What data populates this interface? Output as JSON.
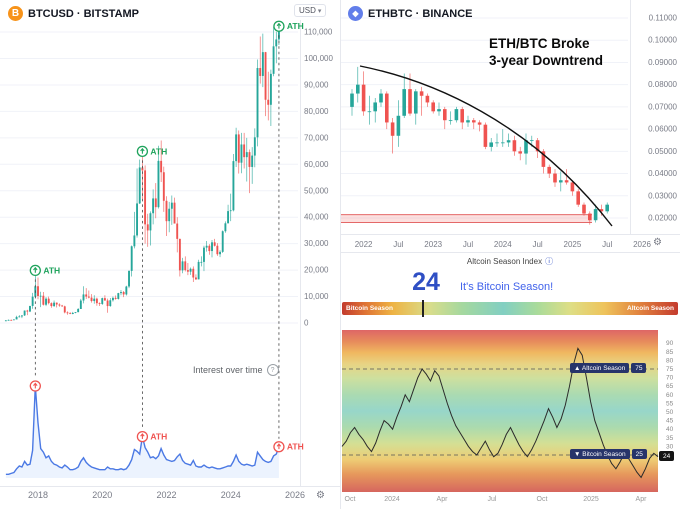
{
  "left_panel": {
    "symbol_title": "BTCUSD · BITSTAMP",
    "currency_label": "USD",
    "y_axis_labels": [
      "110,000",
      "100,000",
      "90,000",
      "80,000",
      "70,000",
      "60,000",
      "50,000",
      "40,000",
      "30,000",
      "20,000",
      "10,000",
      "0"
    ],
    "x_axis_labels": [
      "2018",
      "2020",
      "2022",
      "2024",
      "2026"
    ],
    "ath_label": "ATH",
    "interest_title": "Interest over time",
    "help_glyph": "?"
  },
  "right_top_panel": {
    "symbol_title": "ETHBTC · BINANCE",
    "annotation_line1": "ETH/BTC Broke",
    "annotation_line2": "3-year Downtrend",
    "y_axis_labels": [
      "0.11000",
      "0.10000",
      "0.09000",
      "0.08000",
      "0.07000",
      "0.06000",
      "0.05000",
      "0.04000",
      "0.03000",
      "0.02000"
    ],
    "x_axis_labels": [
      "2022",
      "Jul",
      "2023",
      "Jul",
      "2024",
      "Jul",
      "2025",
      "Jul",
      "2026"
    ]
  },
  "altcoin_panel": {
    "title": "Altcoin Season Index",
    "info_glyph": "ⓘ",
    "value": "24",
    "status": "It's Bitcoin Season!",
    "bar_left_label": "Bitcoin Season",
    "bar_right_label": "Altcoin Season",
    "marker_percent": 24,
    "altcoin_line_label": "▲ Altcoin Season",
    "altcoin_line_value": "75",
    "bitcoin_line_label": "▼ Bitcoin Season",
    "bitcoin_line_value": "25",
    "current_value": "24",
    "y_axis_labels": [
      "90",
      "85",
      "80",
      "75",
      "70",
      "65",
      "60",
      "55",
      "50",
      "45",
      "40",
      "35",
      "30"
    ],
    "x_axis_labels": [
      "Oct",
      "2024",
      "Apr",
      "Jul",
      "Oct",
      "2025",
      "Apr"
    ]
  },
  "icons": {
    "bitcoin_logo": "B",
    "ethereum_logo": "◆",
    "gear": "⚙",
    "usd_caret": "▾"
  },
  "colors": {
    "candle_up": "#26a69a",
    "candle_down": "#ef5350",
    "ath_green": "#1fa35c",
    "ath_red": "#ef5350",
    "trend_blue": "#4b79e4",
    "btc_orange": "#f7931a",
    "eth_blue": "#627eea",
    "season_blue": "#2f4fc4",
    "support_red": "#e05252",
    "axis_text": "#787b86",
    "grid": "#f0f2f8",
    "border": "#e6e8ee"
  },
  "chart_data": [
    {
      "type": "candlestick",
      "title": "BTCUSD · BITSTAMP",
      "unit": "USD (thousands)",
      "x_start": "2017-01",
      "interval": "monthly",
      "ylim": [
        0,
        113
      ],
      "ath_indices": [
        11,
        51,
        102
      ],
      "candles": [
        [
          0.96,
          1.14,
          0.74,
          0.97
        ],
        [
          0.97,
          1.3,
          0.92,
          1.18
        ],
        [
          1.18,
          1.29,
          0.89,
          1.08
        ],
        [
          1.08,
          1.36,
          1.07,
          1.35
        ],
        [
          1.35,
          2.76,
          1.34,
          2.29
        ],
        [
          2.29,
          2.98,
          2.11,
          2.48
        ],
        [
          2.48,
          2.93,
          1.83,
          2.87
        ],
        [
          2.87,
          4.76,
          2.66,
          4.7
        ],
        [
          4.7,
          4.98,
          2.97,
          4.34
        ],
        [
          4.34,
          6.47,
          4.11,
          6.45
        ],
        [
          6.45,
          11.4,
          5.4,
          9.95
        ],
        [
          9.95,
          19.9,
          9.4,
          13.9
        ],
        [
          13.9,
          17.2,
          9.0,
          10.2
        ],
        [
          10.2,
          11.8,
          6.0,
          10.3
        ],
        [
          10.3,
          11.7,
          6.6,
          6.9
        ],
        [
          6.9,
          9.76,
          6.4,
          9.2
        ],
        [
          9.2,
          9.99,
          7.04,
          7.5
        ],
        [
          7.5,
          7.78,
          5.78,
          6.4
        ],
        [
          6.4,
          8.5,
          6.07,
          7.7
        ],
        [
          7.7,
          7.77,
          5.87,
          7.0
        ],
        [
          7.0,
          7.41,
          6.14,
          6.6
        ],
        [
          6.6,
          6.86,
          6.09,
          6.3
        ],
        [
          6.3,
          6.55,
          3.65,
          4.0
        ],
        [
          4.0,
          4.41,
          3.12,
          3.7
        ],
        [
          3.7,
          4.1,
          3.35,
          3.4
        ],
        [
          3.4,
          4.2,
          3.33,
          3.8
        ],
        [
          3.8,
          4.14,
          3.67,
          4.1
        ],
        [
          4.1,
          5.64,
          4.05,
          5.3
        ],
        [
          5.3,
          9.1,
          5.27,
          8.5
        ],
        [
          8.5,
          13.9,
          7.43,
          10.8
        ],
        [
          10.8,
          13.2,
          9.07,
          10.0
        ],
        [
          10.0,
          12.3,
          9.32,
          9.6
        ],
        [
          9.6,
          10.9,
          7.7,
          8.3
        ],
        [
          8.3,
          10.5,
          7.29,
          9.2
        ],
        [
          9.2,
          9.6,
          6.52,
          7.5
        ],
        [
          7.5,
          7.78,
          6.43,
          7.2
        ],
        [
          7.2,
          9.58,
          6.85,
          9.4
        ],
        [
          9.4,
          10.5,
          8.4,
          8.5
        ],
        [
          8.5,
          9.2,
          3.86,
          6.4
        ],
        [
          6.4,
          9.46,
          6.15,
          8.6
        ],
        [
          8.6,
          10.0,
          8.1,
          9.5
        ],
        [
          9.5,
          10.4,
          8.83,
          9.1
        ],
        [
          9.1,
          11.4,
          8.9,
          11.3
        ],
        [
          11.3,
          12.5,
          10.5,
          11.7
        ],
        [
          11.7,
          12.1,
          9.8,
          10.8
        ],
        [
          10.8,
          14.1,
          10.4,
          13.8
        ],
        [
          13.8,
          19.9,
          13.2,
          19.7
        ],
        [
          19.7,
          29.3,
          17.6,
          29.0
        ],
        [
          29.0,
          42.0,
          28.2,
          33.1
        ],
        [
          33.1,
          58.4,
          32.3,
          45.2
        ],
        [
          45.2,
          61.8,
          45.0,
          58.8
        ],
        [
          58.8,
          64.9,
          46.9,
          57.7
        ],
        [
          57.7,
          59.6,
          30.0,
          37.3
        ],
        [
          37.3,
          41.3,
          28.8,
          35.0
        ],
        [
          35.0,
          42.2,
          29.3,
          41.5
        ],
        [
          41.5,
          50.5,
          37.3,
          47.1
        ],
        [
          47.1,
          52.9,
          39.6,
          43.8
        ],
        [
          43.8,
          67.0,
          43.3,
          61.3
        ],
        [
          61.3,
          69.0,
          53.3,
          57.0
        ],
        [
          57.0,
          59.1,
          42.0,
          46.2
        ],
        [
          46.2,
          47.9,
          32.9,
          38.5
        ],
        [
          38.5,
          45.8,
          34.3,
          43.2
        ],
        [
          43.2,
          48.2,
          37.1,
          45.5
        ],
        [
          45.5,
          47.4,
          37.6,
          37.6
        ],
        [
          37.6,
          40.0,
          26.7,
          31.8
        ],
        [
          31.8,
          31.9,
          17.6,
          19.9
        ],
        [
          19.9,
          24.6,
          18.8,
          23.3
        ],
        [
          23.3,
          25.2,
          19.5,
          20.0
        ],
        [
          20.0,
          22.7,
          18.1,
          19.4
        ],
        [
          19.4,
          21.0,
          18.2,
          20.5
        ],
        [
          20.5,
          21.4,
          15.5,
          17.2
        ],
        [
          17.2,
          18.4,
          16.3,
          16.5
        ],
        [
          16.5,
          23.9,
          16.5,
          23.1
        ],
        [
          23.1,
          25.2,
          21.4,
          23.1
        ],
        [
          23.1,
          29.2,
          19.6,
          28.5
        ],
        [
          28.5,
          31.0,
          27.0,
          29.2
        ],
        [
          29.2,
          29.8,
          25.8,
          27.2
        ],
        [
          27.2,
          31.4,
          24.8,
          30.5
        ],
        [
          30.5,
          31.8,
          28.9,
          29.2
        ],
        [
          29.2,
          30.2,
          25.4,
          26.0
        ],
        [
          26.0,
          27.5,
          24.9,
          26.9
        ],
        [
          26.9,
          35.0,
          26.5,
          34.7
        ],
        [
          34.7,
          38.4,
          34.1,
          37.7
        ],
        [
          37.7,
          44.7,
          37.6,
          42.3
        ],
        [
          42.3,
          48.9,
          38.5,
          42.6
        ],
        [
          42.6,
          63.9,
          42.2,
          61.2
        ],
        [
          61.2,
          73.8,
          59.0,
          71.3
        ],
        [
          71.3,
          72.8,
          56.5,
          60.6
        ],
        [
          60.6,
          71.9,
          56.6,
          67.5
        ],
        [
          67.5,
          71.9,
          58.4,
          62.7
        ],
        [
          62.7,
          70.0,
          53.5,
          64.6
        ],
        [
          64.6,
          65.6,
          49.1,
          59.0
        ],
        [
          59.0,
          66.5,
          52.6,
          63.3
        ],
        [
          63.3,
          73.6,
          58.9,
          70.2
        ],
        [
          70.2,
          99.6,
          66.8,
          96.4
        ],
        [
          96.4,
          108.3,
          90.5,
          93.4
        ],
        [
          93.4,
          109.4,
          89.2,
          102.4
        ],
        [
          102.4,
          102.5,
          78.2,
          84.4
        ],
        [
          84.4,
          95.0,
          76.6,
          82.5
        ],
        [
          82.5,
          95.8,
          74.5,
          94.2
        ],
        [
          94.2,
          112.0,
          93.3,
          104.6
        ],
        [
          104.6,
          110.0,
          98.2,
          107.2
        ],
        [
          107.2,
          112.2,
          105.1,
          111.9
        ]
      ]
    },
    {
      "type": "line",
      "title": "Interest over time",
      "x_start": "2017-01",
      "interval": "monthly",
      "ylim": [
        0,
        100
      ],
      "ath_indices": [
        11,
        51,
        102
      ],
      "values": [
        4,
        4,
        5,
        6,
        10,
        13,
        12,
        18,
        14,
        15,
        30,
        100,
        60,
        32,
        28,
        22,
        24,
        18,
        15,
        14,
        12,
        11,
        14,
        12,
        9,
        9,
        10,
        12,
        18,
        22,
        17,
        14,
        12,
        11,
        10,
        9,
        9,
        9,
        12,
        10,
        10,
        9,
        9,
        10,
        9,
        10,
        14,
        20,
        31,
        29,
        26,
        45,
        33,
        28,
        22,
        23,
        21,
        24,
        32,
        25,
        20,
        19,
        18,
        19,
        23,
        26,
        19,
        16,
        15,
        14,
        19,
        13,
        12,
        12,
        14,
        12,
        11,
        12,
        11,
        10,
        10,
        11,
        12,
        13,
        13,
        18,
        25,
        18,
        15,
        14,
        15,
        14,
        13,
        14,
        28,
        24,
        20,
        18,
        17,
        18,
        24,
        26,
        34
      ]
    },
    {
      "type": "candlestick",
      "title": "ETHBTC · BINANCE",
      "x_start": "2021-11",
      "interval": "monthly",
      "ylim": [
        0.015,
        0.115
      ],
      "support_zone": [
        0.018,
        0.0215
      ],
      "trendline": "3-year downtrend arc from 0.09 (2022) to 0.022 (2025)",
      "candles": [
        [
          0.07,
          0.078,
          0.066,
          0.076
        ],
        [
          0.076,
          0.088,
          0.072,
          0.08
        ],
        [
          0.08,
          0.086,
          0.066,
          0.068
        ],
        [
          0.068,
          0.075,
          0.062,
          0.068
        ],
        [
          0.068,
          0.074,
          0.063,
          0.072
        ],
        [
          0.072,
          0.078,
          0.07,
          0.076
        ],
        [
          0.076,
          0.077,
          0.06,
          0.063
        ],
        [
          0.063,
          0.065,
          0.049,
          0.057
        ],
        [
          0.057,
          0.073,
          0.052,
          0.066
        ],
        [
          0.066,
          0.085,
          0.065,
          0.078
        ],
        [
          0.078,
          0.085,
          0.066,
          0.067
        ],
        [
          0.067,
          0.078,
          0.062,
          0.077
        ],
        [
          0.077,
          0.079,
          0.066,
          0.075
        ],
        [
          0.075,
          0.076,
          0.07,
          0.072
        ],
        [
          0.072,
          0.073,
          0.067,
          0.068
        ],
        [
          0.068,
          0.072,
          0.066,
          0.069
        ],
        [
          0.069,
          0.07,
          0.06,
          0.064
        ],
        [
          0.064,
          0.068,
          0.062,
          0.064
        ],
        [
          0.064,
          0.07,
          0.063,
          0.069
        ],
        [
          0.069,
          0.07,
          0.06,
          0.063
        ],
        [
          0.063,
          0.066,
          0.061,
          0.064
        ],
        [
          0.064,
          0.065,
          0.06,
          0.063
        ],
        [
          0.063,
          0.064,
          0.059,
          0.062
        ],
        [
          0.062,
          0.063,
          0.051,
          0.052
        ],
        [
          0.052,
          0.056,
          0.05,
          0.054
        ],
        [
          0.054,
          0.058,
          0.052,
          0.054
        ],
        [
          0.054,
          0.06,
          0.052,
          0.054
        ],
        [
          0.054,
          0.058,
          0.052,
          0.055
        ],
        [
          0.055,
          0.057,
          0.048,
          0.05
        ],
        [
          0.05,
          0.052,
          0.046,
          0.049
        ],
        [
          0.049,
          0.058,
          0.044,
          0.055
        ],
        [
          0.055,
          0.057,
          0.052,
          0.055
        ],
        [
          0.055,
          0.056,
          0.047,
          0.05
        ],
        [
          0.05,
          0.051,
          0.04,
          0.043
        ],
        [
          0.043,
          0.044,
          0.038,
          0.04
        ],
        [
          0.04,
          0.042,
          0.034,
          0.036
        ],
        [
          0.036,
          0.041,
          0.032,
          0.037
        ],
        [
          0.037,
          0.042,
          0.035,
          0.036
        ],
        [
          0.036,
          0.037,
          0.03,
          0.032
        ],
        [
          0.032,
          0.033,
          0.025,
          0.026
        ],
        [
          0.026,
          0.027,
          0.021,
          0.022
        ],
        [
          0.022,
          0.023,
          0.017,
          0.019
        ],
        [
          0.019,
          0.026,
          0.018,
          0.024
        ],
        [
          0.024,
          0.026,
          0.021,
          0.023
        ],
        [
          0.023,
          0.027,
          0.022,
          0.026
        ]
      ]
    },
    {
      "type": "line",
      "title": "Altcoin Season Index",
      "x_start": "2023-10",
      "interval": "weekly",
      "ylim": [
        15,
        95
      ],
      "thresholds": {
        "altcoin_season": 75,
        "bitcoin_season": 25
      },
      "current": 24,
      "values": [
        30,
        33,
        38,
        41,
        37,
        34,
        30,
        27,
        32,
        39,
        45,
        43,
        40,
        47,
        53,
        60,
        56,
        63,
        70,
        75,
        72,
        68,
        74,
        71,
        63,
        55,
        48,
        42,
        38,
        34,
        30,
        27,
        25,
        29,
        33,
        28,
        24,
        26,
        31,
        37,
        41,
        36,
        31,
        27,
        24,
        28,
        33,
        39,
        45,
        52,
        47,
        41,
        46,
        54,
        65,
        78,
        87,
        83,
        70,
        56,
        45,
        38,
        31,
        25,
        20,
        17,
        21,
        26,
        23,
        19,
        15,
        12,
        17,
        23,
        26,
        24
      ]
    }
  ]
}
